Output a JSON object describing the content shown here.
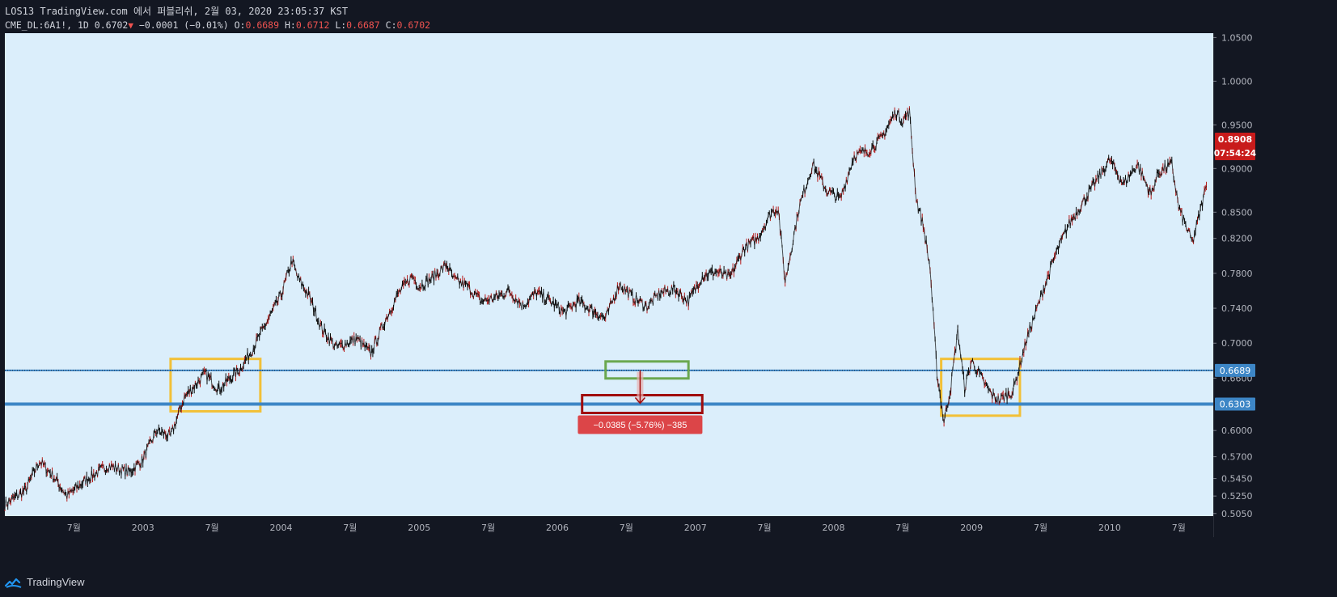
{
  "header": {
    "title": "LOS13 TradingView.com 에서 퍼블리쉬, 2월 03, 2020 23:05:37 KST",
    "symbol": "CME_DL:6A1!, 1D",
    "last": "0.6702",
    "change": "−0.0001 (−0.01%)",
    "o_label": "O:",
    "o_value": "0.6689",
    "h_label": "H:",
    "h_value": "0.6712",
    "l_label": "L:",
    "l_value": "0.6687",
    "c_label": "C:",
    "c_value": "0.6702",
    "down_arrow": "▼"
  },
  "footer": {
    "brand": "TradingView",
    "logo_icon": "tradingview-logo-icon"
  },
  "colors": {
    "background": "#131722",
    "plot_bg": "#dbeefb",
    "candle": "#0a0a0a",
    "candle_down": "#b71c1c",
    "hline": "#3d86c6",
    "yellow_box": "#f2c037",
    "green_box": "#6aa84f",
    "red_box": "#a00c0c",
    "measure_label": "#dc4548",
    "price_badge": "#c81b1b"
  },
  "chart_data": {
    "type": "line",
    "x_unit": "year",
    "x": [
      2002.0,
      2002.15,
      2002.25,
      2002.35,
      2002.45,
      2002.6,
      2002.75,
      2002.9,
      2003.0,
      2003.1,
      2003.2,
      2003.3,
      2003.45,
      2003.55,
      2003.6,
      2003.7,
      2003.8,
      2003.9,
      2004.0,
      2004.08,
      2004.12,
      2004.2,
      2004.3,
      2004.4,
      2004.55,
      2004.65,
      2004.75,
      2004.85,
      2004.95,
      2005.0,
      2005.1,
      2005.2,
      2005.25,
      2005.35,
      2005.45,
      2005.55,
      2005.65,
      2005.75,
      2005.85,
      2005.95,
      2006.05,
      2006.15,
      2006.25,
      2006.35,
      2006.45,
      2006.55,
      2006.65,
      2006.75,
      2006.85,
      2006.95,
      2007.05,
      2007.15,
      2007.25,
      2007.35,
      2007.45,
      2007.55,
      2007.6,
      2007.65,
      2007.75,
      2007.85,
      2007.95,
      2008.05,
      2008.15,
      2008.25,
      2008.35,
      2008.45,
      2008.5,
      2008.55,
      2008.6,
      2008.65,
      2008.7,
      2008.75,
      2008.8,
      2008.85,
      2008.9,
      2008.95,
      2009.0,
      2009.1,
      2009.15,
      2009.2,
      2009.3,
      2009.4,
      2009.5,
      2009.6,
      2009.7,
      2009.8,
      2009.9,
      2010.0,
      2010.1,
      2010.2,
      2010.3,
      2010.35,
      2010.45,
      2010.5,
      2010.6,
      2010.7
    ],
    "y": [
      0.515,
      0.532,
      0.565,
      0.548,
      0.525,
      0.545,
      0.56,
      0.552,
      0.567,
      0.6,
      0.593,
      0.638,
      0.665,
      0.647,
      0.655,
      0.67,
      0.695,
      0.725,
      0.755,
      0.795,
      0.775,
      0.755,
      0.715,
      0.695,
      0.705,
      0.688,
      0.725,
      0.757,
      0.777,
      0.765,
      0.775,
      0.79,
      0.773,
      0.765,
      0.748,
      0.752,
      0.76,
      0.743,
      0.758,
      0.748,
      0.735,
      0.748,
      0.738,
      0.728,
      0.768,
      0.752,
      0.742,
      0.758,
      0.762,
      0.748,
      0.777,
      0.782,
      0.775,
      0.808,
      0.82,
      0.85,
      0.855,
      0.77,
      0.855,
      0.905,
      0.875,
      0.865,
      0.915,
      0.92,
      0.935,
      0.965,
      0.955,
      0.965,
      0.865,
      0.835,
      0.785,
      0.665,
      0.61,
      0.65,
      0.715,
      0.648,
      0.68,
      0.652,
      0.64,
      0.635,
      0.645,
      0.705,
      0.752,
      0.798,
      0.835,
      0.86,
      0.885,
      0.91,
      0.882,
      0.905,
      0.87,
      0.895,
      0.905,
      0.855,
      0.815,
      0.88
    ],
    "y_ticks": [
      "1.0500",
      "1.0000",
      "0.9500",
      "0.9000",
      "0.8500",
      "0.8200",
      "0.7800",
      "0.7400",
      "0.7000",
      "0.6600",
      "0.6000",
      "0.5700",
      "0.5450",
      "0.5250",
      "0.5050"
    ],
    "y_tick_values": [
      1.05,
      1.0,
      0.95,
      0.9,
      0.85,
      0.82,
      0.78,
      0.74,
      0.7,
      0.66,
      0.6,
      0.57,
      0.545,
      0.525,
      0.505
    ],
    "x_ticks": [
      "7월",
      "2003",
      "7월",
      "2004",
      "7월",
      "2005",
      "7월",
      "2006",
      "7월",
      "2007",
      "7월",
      "2008",
      "7월",
      "2009",
      "7월",
      "2010",
      "7월"
    ],
    "x_tick_values": [
      2002.5,
      2003,
      2003.5,
      2004,
      2004.5,
      2005,
      2005.5,
      2006,
      2006.5,
      2007,
      2007.5,
      2008,
      2008.5,
      2009,
      2009.5,
      2010,
      2010.5
    ],
    "xlim": [
      2002.0,
      2010.75
    ],
    "ylim": [
      0.502,
      1.055
    ],
    "horizontal_lines": [
      {
        "price": 0.6689,
        "label": "0.6689"
      },
      {
        "price": 0.6303,
        "label": "0.6303"
      }
    ],
    "current_price": {
      "label": "0.8908",
      "countdown": "07:54:24"
    },
    "highlight_boxes": [
      {
        "color": "yellow",
        "x0": 2003.2,
        "x1": 2003.85,
        "y0": 0.622,
        "y1": 0.682
      },
      {
        "color": "yellow",
        "x0": 2008.78,
        "x1": 2009.35,
        "y0": 0.617,
        "y1": 0.682
      }
    ],
    "measure": {
      "from_price": 0.6689,
      "to_price": 0.6303,
      "x_from": 2006.18,
      "x_to": 2007.05,
      "label": "−0.0385 (−5.76%) −385"
    }
  }
}
